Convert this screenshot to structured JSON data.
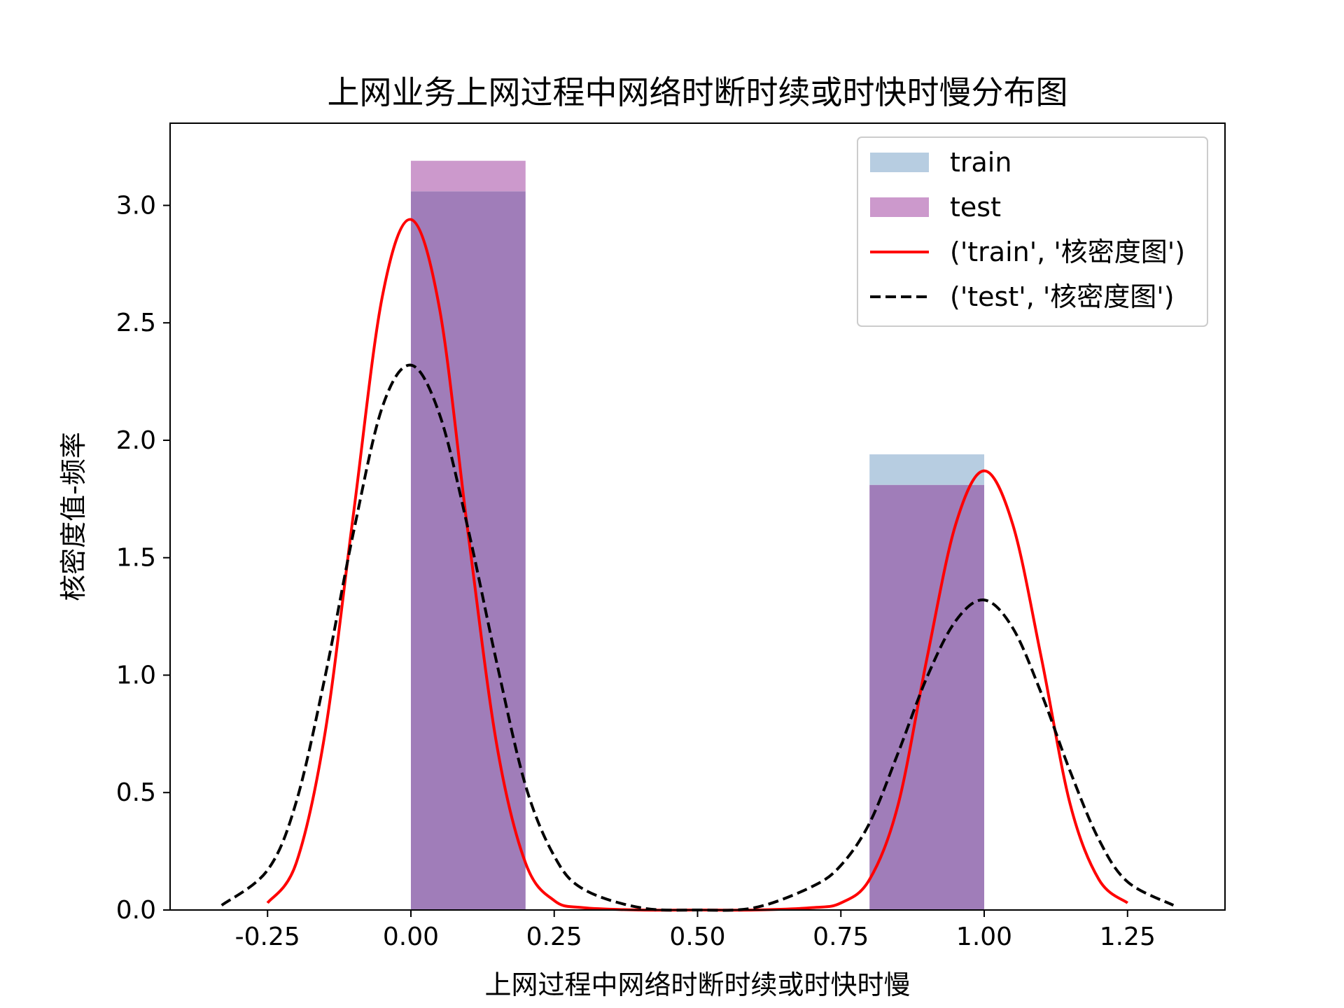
{
  "chart_data": {
    "type": "histogram+kde",
    "title": "上网业务上网过程中网络时断时续或时快时慢分布图",
    "xlabel": "上网过程中网络时断时续或时快时慢",
    "ylabel": "核密度值-频率",
    "xlim": [
      -0.42,
      1.42
    ],
    "ylim": [
      0,
      3.35
    ],
    "xticks": [
      -0.25,
      0.0,
      0.25,
      0.5,
      0.75,
      1.0,
      1.25
    ],
    "xtick_labels": [
      "-0.25",
      "0.00",
      "0.25",
      "0.50",
      "0.75",
      "1.00",
      "1.25"
    ],
    "yticks": [
      0.0,
      0.5,
      1.0,
      1.5,
      2.0,
      2.5,
      3.0
    ],
    "ytick_labels": [
      "0.0",
      "0.5",
      "1.0",
      "1.5",
      "2.0",
      "2.5",
      "3.0"
    ],
    "legend_position": "top-right",
    "histograms": [
      {
        "name": "train",
        "color": "#b7cde1",
        "bins": [
          {
            "x0": 0.0,
            "x1": 0.2,
            "value": 3.06
          },
          {
            "x0": 0.8,
            "x1": 1.0,
            "value": 1.94
          }
        ]
      },
      {
        "name": "test",
        "color": "#cc99cc",
        "bins": [
          {
            "x0": 0.0,
            "x1": 0.2,
            "value": 3.19
          },
          {
            "x0": 0.8,
            "x1": 1.0,
            "value": 1.81
          }
        ]
      }
    ],
    "overlap_color": "#a07db9",
    "kde": [
      {
        "name": "('train', '核密度图')",
        "color": "#ff0000",
        "style": "solid",
        "x": [
          -0.25,
          -0.2,
          -0.15,
          -0.1,
          -0.05,
          0.0,
          0.05,
          0.1,
          0.15,
          0.2,
          0.25,
          0.3,
          0.4,
          0.5,
          0.6,
          0.7,
          0.75,
          0.8,
          0.85,
          0.9,
          0.95,
          1.0,
          1.05,
          1.1,
          1.15,
          1.2,
          1.25
        ],
        "y": [
          0.03,
          0.2,
          0.75,
          1.69,
          2.61,
          2.94,
          2.56,
          1.6,
          0.7,
          0.2,
          0.04,
          0.01,
          0.0,
          0.0,
          0.0,
          0.01,
          0.03,
          0.13,
          0.45,
          1.07,
          1.64,
          1.87,
          1.64,
          1.07,
          0.45,
          0.13,
          0.03
        ]
      },
      {
        "name": "('test', '核密度图')",
        "color": "#000000",
        "style": "dashed",
        "x": [
          -0.33,
          -0.25,
          -0.2,
          -0.15,
          -0.1,
          -0.05,
          0.0,
          0.05,
          0.1,
          0.15,
          0.2,
          0.25,
          0.3,
          0.4,
          0.5,
          0.6,
          0.7,
          0.75,
          0.8,
          0.85,
          0.9,
          0.95,
          1.0,
          1.05,
          1.1,
          1.15,
          1.2,
          1.25,
          1.33
        ],
        "y": [
          0.02,
          0.17,
          0.46,
          0.99,
          1.61,
          2.14,
          2.32,
          2.11,
          1.62,
          1.05,
          0.53,
          0.23,
          0.09,
          0.01,
          0.0,
          0.01,
          0.1,
          0.19,
          0.37,
          0.67,
          0.99,
          1.23,
          1.32,
          1.2,
          0.92,
          0.59,
          0.3,
          0.12,
          0.02
        ]
      }
    ]
  }
}
